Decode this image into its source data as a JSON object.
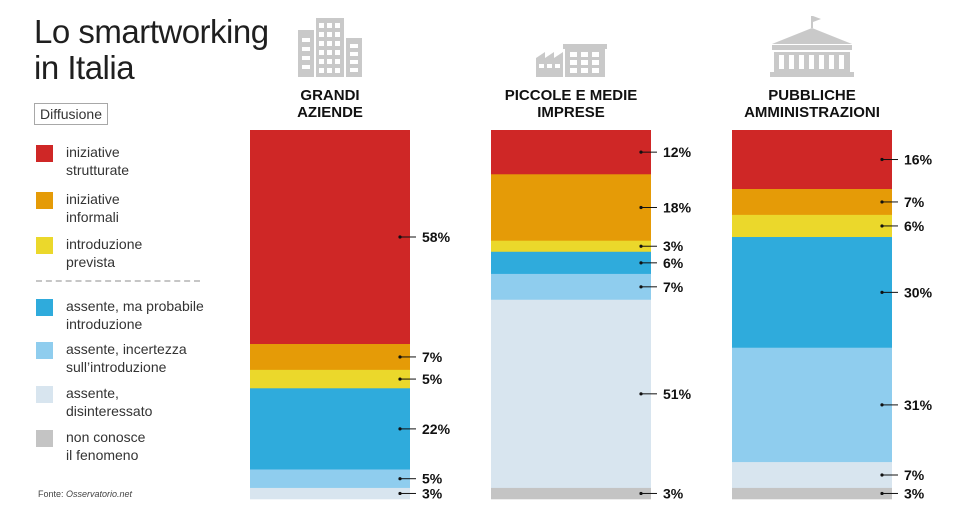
{
  "title": "Lo smartworking\nin Italia",
  "legend_title": "Diffusione",
  "source": {
    "prefix": "Fonte: ",
    "name": "Osservatorio.net"
  },
  "colors": {
    "iniziative_strutturate": "#cf2726",
    "iniziative_informali": "#e59b07",
    "introduzione_prevista": "#ebd82b",
    "assente_probabile": "#2fabdc",
    "assente_incertezza": "#8fcdee",
    "assente_disinteressato": "#d8e5ef",
    "non_conosce": "#c4c4c4",
    "icons": "#c9c9c9"
  },
  "legend": [
    {
      "key": "iniziative_strutturate",
      "label": "iniziative\nstrutturate"
    },
    {
      "key": "iniziative_informali",
      "label": "iniziative\ninformali"
    },
    {
      "key": "introduzione_prevista",
      "label": "introduzione\nprevista"
    },
    {
      "key": "assente_probabile",
      "label": "assente, ma probabile\nintroduzione"
    },
    {
      "key": "assente_incertezza",
      "label": "assente, incertezza\nsull’introduzione"
    },
    {
      "key": "assente_disinteressato",
      "label": "assente,\ndisinteressato"
    },
    {
      "key": "non_conosce",
      "label": "non conosce\nil fenomeno"
    }
  ],
  "chart_data": {
    "type": "bar",
    "stacked": true,
    "normalized": true,
    "categories": [
      "GRANDI\nAZIENDE",
      "PICCOLE E MEDIE\nIMPRESE",
      "PUBBLICHE\nAMMINISTRAZIONI"
    ],
    "icons": [
      "office-building-icon",
      "factory-icon",
      "government-building-icon"
    ],
    "series": [
      {
        "name": "iniziative strutturate",
        "key": "iniziative_strutturate",
        "values": [
          58,
          12,
          16
        ]
      },
      {
        "name": "iniziative informali",
        "key": "iniziative_informali",
        "values": [
          7,
          18,
          7
        ]
      },
      {
        "name": "introduzione prevista",
        "key": "introduzione_prevista",
        "values": [
          5,
          3,
          6
        ]
      },
      {
        "name": "assente, ma probabile introduzione",
        "key": "assente_probabile",
        "values": [
          22,
          6,
          30
        ]
      },
      {
        "name": "assente, incertezza sull’introduzione",
        "key": "assente_incertezza",
        "values": [
          5,
          7,
          31
        ]
      },
      {
        "name": "assente, disinteressato",
        "key": "assente_disinteressato",
        "values": [
          3,
          51,
          7
        ]
      },
      {
        "name": "non conosce il fenomeno",
        "key": "non_conosce",
        "values": [
          0,
          3,
          3
        ]
      }
    ],
    "labels": [
      [
        "58%",
        "7%",
        "5%",
        "22%",
        "5%",
        "3%",
        ""
      ],
      [
        "12%",
        "18%",
        "3%",
        "6%",
        "7%",
        "51%",
        "3%"
      ],
      [
        "16%",
        "7%",
        "6%",
        "30%",
        "31%",
        "7%",
        "3%"
      ]
    ],
    "unit": "%"
  }
}
